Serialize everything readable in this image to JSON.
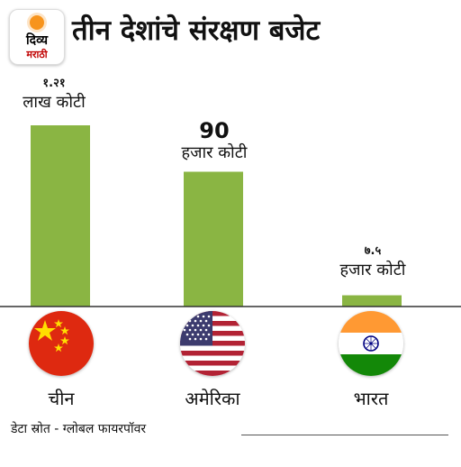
{
  "header": {
    "logo_line1": "दिव्य",
    "logo_line2": "मराठी",
    "title": "तीन देशांचे संरक्षण बजेट"
  },
  "chart_data": {
    "type": "bar",
    "categories": [
      "चीन",
      "अमेरिका",
      "भारत"
    ],
    "values": [
      121000,
      90000,
      7500
    ],
    "value_labels": [
      {
        "number": "१.२१",
        "unit": "लाख कोटी"
      },
      {
        "number": "90",
        "unit": "हजार कोटी"
      },
      {
        "number": "७.५",
        "unit": "हजार कोटी"
      }
    ],
    "flags": [
      "china-flag-icon",
      "usa-flag-icon",
      "india-flag-icon"
    ],
    "bar_color": "#8ab543",
    "title": "तीन देशांचे संरक्षण बजेट"
  },
  "footer": {
    "source": "डेटा स्रोत - ग्लोबल फायरपॉवर"
  }
}
